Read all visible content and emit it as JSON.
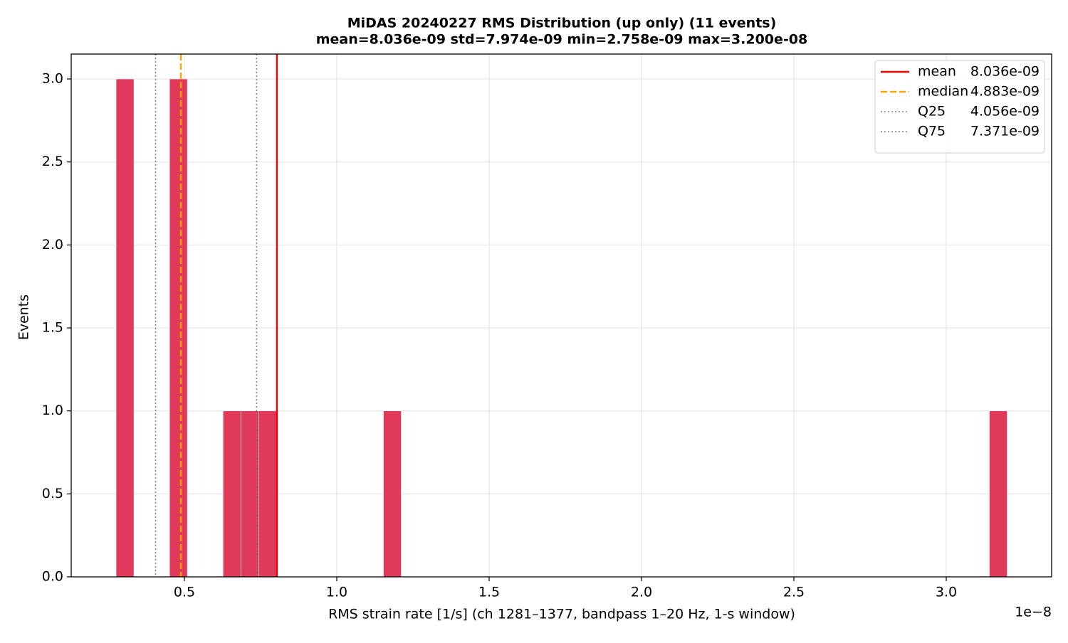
{
  "chart_data": {
    "type": "histogram",
    "title": "MiDAS 20240227  RMS Distribution  (up only)  (11 events)",
    "subtitle": "mean=8.036e-09  std=7.974e-09  min=2.758e-09  max=3.200e-08",
    "x_label": "RMS strain rate [1/s]  (ch 1281–1377, bandpass 1–20 Hz, 1-s window)",
    "y_label": "Events",
    "x_offset_label": "1e−8",
    "color": "#e0395a",
    "bins": [
      0.2758,
      0.3343,
      0.3928,
      0.4513,
      0.5097,
      0.5682,
      0.6267,
      0.6852,
      0.7437,
      0.8022,
      0.8606,
      0.9191,
      0.9776,
      1.0361,
      1.0946,
      1.1531,
      1.2115,
      1.27,
      1.3285,
      1.387,
      1.4455,
      1.504,
      1.5624,
      1.6209,
      1.6794,
      1.7379,
      1.7964,
      1.8549,
      1.9134,
      1.9718,
      2.0303,
      2.0888,
      2.1473,
      2.2058,
      2.2643,
      2.3227,
      2.3812,
      2.4397,
      2.4982,
      2.5567,
      2.6152,
      2.6736,
      2.7321,
      2.7906,
      2.8491,
      2.9076,
      2.9661,
      3.0245,
      3.083,
      3.1415,
      3.2
    ],
    "values": [
      3,
      0,
      0,
      3,
      0,
      0,
      1,
      1,
      1,
      0,
      0,
      0,
      0,
      0,
      0,
      1,
      0,
      0,
      0,
      0,
      0,
      0,
      0,
      0,
      0,
      0,
      0,
      0,
      0,
      0,
      0,
      0,
      0,
      0,
      0,
      0,
      0,
      0,
      0,
      0,
      0,
      0,
      0,
      0,
      0,
      0,
      0,
      0,
      0,
      1
    ],
    "vlines": [
      {
        "name": "mean",
        "label": "8.036e-09",
        "value": 0.8036,
        "color": "#ee0000",
        "style": "solid"
      },
      {
        "name": "median",
        "label": "4.883e-09",
        "value": 0.4883,
        "color": "#ffa500",
        "style": "dashed"
      },
      {
        "name": "Q25",
        "label": "4.056e-09",
        "value": 0.4056,
        "color": "#808080",
        "style": "dotted"
      },
      {
        "name": "Q75",
        "label": "7.371e-09",
        "value": 0.7371,
        "color": "#808080",
        "style": "dotted"
      }
    ],
    "xlim": [
      0.1285,
      3.3458
    ],
    "ylim": [
      0,
      3.15
    ],
    "xticks": [
      0.5,
      {
        "value": 1.0,
        "label": "1.0"
      },
      1.5,
      {
        "value": 2.0,
        "label": "2.0"
      },
      2.5,
      {
        "value": 3.0,
        "label": "3.0"
      }
    ],
    "yticks": [
      {
        "value": 0,
        "label": "0.0"
      },
      0.5,
      {
        "value": 1,
        "label": "1.0"
      },
      1.5,
      {
        "value": 2,
        "label": "2.0"
      },
      2.5,
      {
        "value": 3,
        "label": "3.0"
      }
    ],
    "grid": true,
    "legend": "upper right"
  }
}
